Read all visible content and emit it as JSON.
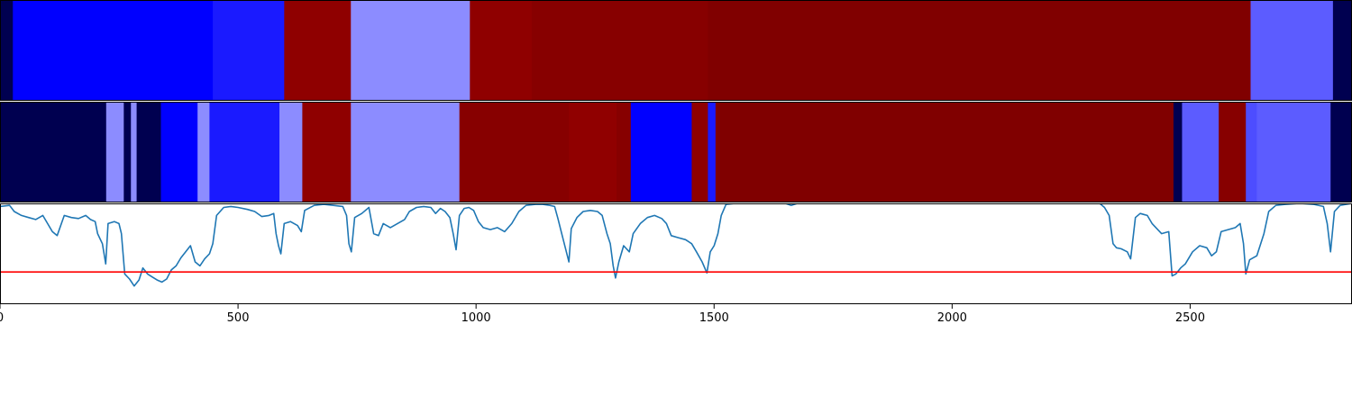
{
  "chart_data": {
    "type": "heatmap",
    "x_range": [
      0,
      2840
    ],
    "x_ticks": [
      0,
      500,
      1000,
      1500,
      2000,
      2500
    ],
    "x_tick_labels": [
      "0",
      "500",
      "1000",
      "1500",
      "2000",
      "2500"
    ],
    "threshold_color": "#ff0000",
    "line_color": "#1f77b4",
    "rows": [
      {
        "segments": [
          {
            "start": 0,
            "end": 27,
            "color": "#000050"
          },
          {
            "start": 27,
            "end": 447,
            "color": "#0000ff"
          },
          {
            "start": 447,
            "end": 597,
            "color": "#1a1aff"
          },
          {
            "start": 597,
            "end": 737,
            "color": "#8f0000"
          },
          {
            "start": 737,
            "end": 987,
            "color": "#8c8cff"
          },
          {
            "start": 987,
            "end": 1117,
            "color": "#8f0000"
          },
          {
            "start": 1117,
            "end": 1487,
            "color": "#870000"
          },
          {
            "start": 1487,
            "end": 2627,
            "color": "#800000"
          },
          {
            "start": 2627,
            "end": 2800,
            "color": "#5c5cff"
          },
          {
            "start": 2800,
            "end": 2840,
            "color": "#000050"
          }
        ]
      },
      {
        "segments": [
          {
            "start": 0,
            "end": 223,
            "color": "#000050"
          },
          {
            "start": 223,
            "end": 260,
            "color": "#8c8cff"
          },
          {
            "start": 260,
            "end": 275,
            "color": "#000050"
          },
          {
            "start": 275,
            "end": 287,
            "color": "#8c8cff"
          },
          {
            "start": 287,
            "end": 338,
            "color": "#000050"
          },
          {
            "start": 338,
            "end": 415,
            "color": "#0000ff"
          },
          {
            "start": 415,
            "end": 440,
            "color": "#8c8cff"
          },
          {
            "start": 440,
            "end": 587,
            "color": "#1a1aff"
          },
          {
            "start": 587,
            "end": 635,
            "color": "#8c8cff"
          },
          {
            "start": 635,
            "end": 737,
            "color": "#8f0000"
          },
          {
            "start": 737,
            "end": 965,
            "color": "#8c8cff"
          },
          {
            "start": 965,
            "end": 1195,
            "color": "#870000"
          },
          {
            "start": 1195,
            "end": 1295,
            "color": "#900000"
          },
          {
            "start": 1295,
            "end": 1325,
            "color": "#870000"
          },
          {
            "start": 1325,
            "end": 1453,
            "color": "#0000ff"
          },
          {
            "start": 1453,
            "end": 1487,
            "color": "#8f0000"
          },
          {
            "start": 1487,
            "end": 1503,
            "color": "#1a1aff"
          },
          {
            "start": 1503,
            "end": 2465,
            "color": "#800000"
          },
          {
            "start": 2465,
            "end": 2483,
            "color": "#000050"
          },
          {
            "start": 2483,
            "end": 2560,
            "color": "#5c5cff"
          },
          {
            "start": 2560,
            "end": 2617,
            "color": "#870000"
          },
          {
            "start": 2617,
            "end": 2640,
            "color": "#4d4dff"
          },
          {
            "start": 2640,
            "end": 2795,
            "color": "#5c5cff"
          },
          {
            "start": 2795,
            "end": 2840,
            "color": "#000050"
          }
        ]
      }
    ],
    "line_panel": {
      "ylim": [
        0,
        1
      ],
      "threshold": 0.32,
      "points": [
        [
          0,
          0.97
        ],
        [
          20,
          0.98
        ],
        [
          30,
          0.92
        ],
        [
          45,
          0.88
        ],
        [
          60,
          0.86
        ],
        [
          75,
          0.84
        ],
        [
          90,
          0.88
        ],
        [
          100,
          0.8
        ],
        [
          110,
          0.72
        ],
        [
          120,
          0.68
        ],
        [
          135,
          0.88
        ],
        [
          150,
          0.86
        ],
        [
          165,
          0.85
        ],
        [
          180,
          0.88
        ],
        [
          190,
          0.84
        ],
        [
          200,
          0.82
        ],
        [
          205,
          0.7
        ],
        [
          215,
          0.6
        ],
        [
          222,
          0.4
        ],
        [
          227,
          0.8
        ],
        [
          240,
          0.82
        ],
        [
          250,
          0.8
        ],
        [
          255,
          0.7
        ],
        [
          262,
          0.3
        ],
        [
          272,
          0.25
        ],
        [
          282,
          0.18
        ],
        [
          292,
          0.24
        ],
        [
          300,
          0.36
        ],
        [
          310,
          0.3
        ],
        [
          320,
          0.27
        ],
        [
          330,
          0.24
        ],
        [
          340,
          0.22
        ],
        [
          350,
          0.25
        ],
        [
          360,
          0.34
        ],
        [
          370,
          0.38
        ],
        [
          380,
          0.46
        ],
        [
          390,
          0.52
        ],
        [
          400,
          0.58
        ],
        [
          410,
          0.42
        ],
        [
          420,
          0.38
        ],
        [
          430,
          0.45
        ],
        [
          440,
          0.5
        ],
        [
          447,
          0.6
        ],
        [
          455,
          0.88
        ],
        [
          470,
          0.96
        ],
        [
          485,
          0.97
        ],
        [
          500,
          0.96
        ],
        [
          520,
          0.94
        ],
        [
          535,
          0.92
        ],
        [
          550,
          0.87
        ],
        [
          565,
          0.88
        ],
        [
          575,
          0.9
        ],
        [
          580,
          0.7
        ],
        [
          585,
          0.58
        ],
        [
          590,
          0.5
        ],
        [
          597,
          0.8
        ],
        [
          610,
          0.82
        ],
        [
          625,
          0.78
        ],
        [
          633,
          0.72
        ],
        [
          640,
          0.93
        ],
        [
          660,
          0.98
        ],
        [
          680,
          0.99
        ],
        [
          700,
          0.98
        ],
        [
          720,
          0.97
        ],
        [
          728,
          0.88
        ],
        [
          733,
          0.6
        ],
        [
          738,
          0.52
        ],
        [
          745,
          0.86
        ],
        [
          760,
          0.9
        ],
        [
          775,
          0.96
        ],
        [
          785,
          0.7
        ],
        [
          795,
          0.68
        ],
        [
          805,
          0.8
        ],
        [
          820,
          0.76
        ],
        [
          835,
          0.8
        ],
        [
          850,
          0.84
        ],
        [
          860,
          0.92
        ],
        [
          875,
          0.96
        ],
        [
          890,
          0.97
        ],
        [
          905,
          0.96
        ],
        [
          915,
          0.9
        ],
        [
          925,
          0.95
        ],
        [
          935,
          0.92
        ],
        [
          945,
          0.86
        ],
        [
          952,
          0.7
        ],
        [
          958,
          0.54
        ],
        [
          965,
          0.88
        ],
        [
          975,
          0.95
        ],
        [
          985,
          0.96
        ],
        [
          995,
          0.93
        ],
        [
          1005,
          0.82
        ],
        [
          1015,
          0.76
        ],
        [
          1030,
          0.74
        ],
        [
          1045,
          0.76
        ],
        [
          1060,
          0.72
        ],
        [
          1075,
          0.8
        ],
        [
          1090,
          0.92
        ],
        [
          1105,
          0.98
        ],
        [
          1125,
          0.99
        ],
        [
          1140,
          0.99
        ],
        [
          1155,
          0.98
        ],
        [
          1165,
          0.97
        ],
        [
          1172,
          0.85
        ],
        [
          1180,
          0.7
        ],
        [
          1188,
          0.55
        ],
        [
          1195,
          0.42
        ],
        [
          1200,
          0.75
        ],
        [
          1212,
          0.86
        ],
        [
          1225,
          0.92
        ],
        [
          1240,
          0.93
        ],
        [
          1255,
          0.92
        ],
        [
          1265,
          0.88
        ],
        [
          1275,
          0.7
        ],
        [
          1282,
          0.6
        ],
        [
          1288,
          0.38
        ],
        [
          1293,
          0.26
        ],
        [
          1300,
          0.42
        ],
        [
          1310,
          0.58
        ],
        [
          1322,
          0.52
        ],
        [
          1330,
          0.7
        ],
        [
          1345,
          0.8
        ],
        [
          1360,
          0.86
        ],
        [
          1375,
          0.88
        ],
        [
          1390,
          0.85
        ],
        [
          1400,
          0.8
        ],
        [
          1410,
          0.68
        ],
        [
          1425,
          0.66
        ],
        [
          1440,
          0.64
        ],
        [
          1453,
          0.6
        ],
        [
          1463,
          0.52
        ],
        [
          1475,
          0.42
        ],
        [
          1485,
          0.31
        ],
        [
          1492,
          0.52
        ],
        [
          1500,
          0.58
        ],
        [
          1508,
          0.7
        ],
        [
          1515,
          0.88
        ],
        [
          1525,
          0.99
        ],
        [
          1545,
          1.0
        ],
        [
          1650,
          1.0
        ],
        [
          1662,
          0.98
        ],
        [
          1675,
          1.0
        ],
        [
          1900,
          1.0
        ],
        [
          2200,
          1.0
        ],
        [
          2310,
          1.0
        ],
        [
          2320,
          0.96
        ],
        [
          2330,
          0.88
        ],
        [
          2338,
          0.6
        ],
        [
          2345,
          0.56
        ],
        [
          2355,
          0.55
        ],
        [
          2368,
          0.52
        ],
        [
          2375,
          0.45
        ],
        [
          2385,
          0.86
        ],
        [
          2395,
          0.9
        ],
        [
          2410,
          0.88
        ],
        [
          2420,
          0.8
        ],
        [
          2440,
          0.7
        ],
        [
          2455,
          0.72
        ],
        [
          2462,
          0.28
        ],
        [
          2470,
          0.3
        ],
        [
          2480,
          0.36
        ],
        [
          2490,
          0.4
        ],
        [
          2505,
          0.52
        ],
        [
          2520,
          0.58
        ],
        [
          2535,
          0.56
        ],
        [
          2545,
          0.48
        ],
        [
          2555,
          0.52
        ],
        [
          2565,
          0.72
        ],
        [
          2580,
          0.74
        ],
        [
          2595,
          0.76
        ],
        [
          2605,
          0.8
        ],
        [
          2612,
          0.6
        ],
        [
          2617,
          0.3
        ],
        [
          2625,
          0.44
        ],
        [
          2640,
          0.48
        ],
        [
          2655,
          0.7
        ],
        [
          2665,
          0.92
        ],
        [
          2680,
          0.98
        ],
        [
          2700,
          0.99
        ],
        [
          2730,
          1.0
        ],
        [
          2760,
          0.99
        ],
        [
          2780,
          0.97
        ],
        [
          2788,
          0.8
        ],
        [
          2795,
          0.52
        ],
        [
          2803,
          0.92
        ],
        [
          2815,
          0.98
        ],
        [
          2840,
          1.0
        ]
      ]
    }
  }
}
